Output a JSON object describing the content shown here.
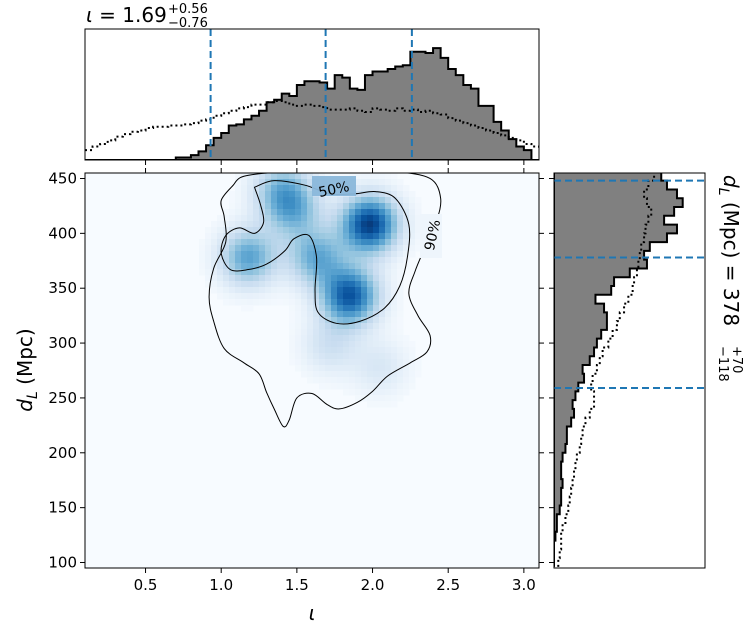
{
  "chart_data": {
    "type": "corner-plot",
    "top_panel": {
      "title_param": "ι",
      "title_median": "1.69",
      "title_plus": "+0.56",
      "title_minus": "−0.76",
      "quantile_lines": [
        0.93,
        1.69,
        2.26
      ],
      "bin_width": 0.05,
      "bins_start": 0.1,
      "histogram_filled": [
        0,
        0,
        0,
        0,
        0,
        0,
        0,
        0,
        0,
        0,
        0,
        0,
        0.02,
        0.02,
        0.04,
        0.07,
        0.12,
        0.18,
        0.22,
        0.28,
        0.29,
        0.33,
        0.36,
        0.4,
        0.47,
        0.49,
        0.54,
        0.52,
        0.61,
        0.64,
        0.64,
        0.63,
        0.58,
        0.69,
        0.67,
        0.58,
        0.57,
        0.69,
        0.72,
        0.72,
        0.74,
        0.76,
        0.77,
        0.88,
        0.88,
        0.87,
        0.91,
        0.83,
        0.74,
        0.69,
        0.61,
        0.58,
        0.44,
        0.44,
        0.31,
        0.24,
        0.17,
        0.11,
        0.08,
        0,
        0,
        0
      ],
      "histogram_dotted": [
        0.08,
        0.11,
        0.13,
        0.16,
        0.19,
        0.21,
        0.23,
        0.24,
        0.26,
        0.27,
        0.27,
        0.28,
        0.28,
        0.29,
        0.3,
        0.32,
        0.33,
        0.36,
        0.38,
        0.4,
        0.42,
        0.43,
        0.45,
        0.45,
        0.47,
        0.48,
        0.47,
        0.45,
        0.44,
        0.45,
        0.44,
        0.43,
        0.41,
        0.41,
        0.41,
        0.42,
        0.4,
        0.39,
        0.42,
        0.41,
        0.4,
        0.42,
        0.4,
        0.41,
        0.39,
        0.4,
        0.38,
        0.37,
        0.34,
        0.32,
        0.3,
        0.28,
        0.26,
        0.24,
        0.22,
        0.2,
        0.18,
        0.16,
        0.13,
        0.11,
        0.09,
        0.07
      ]
    },
    "joint_panel": {
      "xlabel": "ι",
      "ylabel_main": "d",
      "ylabel_sub": "L",
      "ylabel_unit": " (Mpc)",
      "xlim": [
        0.1,
        3.1
      ],
      "ylim": [
        95,
        455
      ],
      "xticks": [
        "0.5",
        "1.0",
        "1.5",
        "2.0",
        "2.5",
        "3.0"
      ],
      "yticks": [
        "100",
        "150",
        "200",
        "250",
        "300",
        "350",
        "400",
        "450"
      ],
      "contour_labels": [
        "50%",
        "90%"
      ],
      "density_peaks": [
        {
          "x": 1.98,
          "y": 408,
          "w": 0.95
        },
        {
          "x": 1.85,
          "y": 343,
          "w": 0.85
        },
        {
          "x": 1.18,
          "y": 378,
          "w": 0.55
        },
        {
          "x": 1.63,
          "y": 378,
          "w": 0.5
        },
        {
          "x": 1.48,
          "y": 420,
          "w": 0.4
        },
        {
          "x": 1.4,
          "y": 440,
          "w": 0.4
        },
        {
          "x": 1.72,
          "y": 298,
          "w": 0.2
        },
        {
          "x": 2.05,
          "y": 278,
          "w": 0.15
        }
      ],
      "contour_50": [
        [
          1.22,
          442
        ],
        [
          1.35,
          448
        ],
        [
          1.55,
          444
        ],
        [
          1.72,
          436
        ],
        [
          1.88,
          436
        ],
        [
          2.02,
          438
        ],
        [
          2.15,
          432
        ],
        [
          2.24,
          408
        ],
        [
          2.23,
          378
        ],
        [
          2.18,
          352
        ],
        [
          2.08,
          332
        ],
        [
          1.92,
          320
        ],
        [
          1.76,
          318
        ],
        [
          1.64,
          328
        ],
        [
          1.62,
          348
        ],
        [
          1.63,
          378
        ],
        [
          1.58,
          398
        ],
        [
          1.48,
          395
        ],
        [
          1.42,
          384
        ],
        [
          1.3,
          372
        ],
        [
          1.18,
          367
        ],
        [
          1.06,
          367
        ],
        [
          1.0,
          382
        ],
        [
          1.03,
          398
        ],
        [
          1.12,
          405
        ],
        [
          1.22,
          400
        ],
        [
          1.28,
          410
        ],
        [
          1.26,
          426
        ],
        [
          1.22,
          442
        ]
      ],
      "contour_90": [
        [
          1.08,
          444
        ],
        [
          1.15,
          452
        ],
        [
          1.4,
          456
        ],
        [
          1.6,
          456
        ],
        [
          1.9,
          455
        ],
        [
          2.15,
          456
        ],
        [
          2.38,
          450
        ],
        [
          2.45,
          432
        ],
        [
          2.42,
          410
        ],
        [
          2.34,
          385
        ],
        [
          2.28,
          365
        ],
        [
          2.24,
          345
        ],
        [
          2.3,
          325
        ],
        [
          2.38,
          307
        ],
        [
          2.36,
          292
        ],
        [
          2.25,
          282
        ],
        [
          2.1,
          270
        ],
        [
          2.0,
          256
        ],
        [
          1.9,
          246
        ],
        [
          1.78,
          240
        ],
        [
          1.7,
          244
        ],
        [
          1.6,
          254
        ],
        [
          1.5,
          250
        ],
        [
          1.45,
          230
        ],
        [
          1.41,
          224
        ],
        [
          1.35,
          240
        ],
        [
          1.3,
          255
        ],
        [
          1.25,
          272
        ],
        [
          1.15,
          282
        ],
        [
          1.02,
          295
        ],
        [
          0.95,
          320
        ],
        [
          0.92,
          342
        ],
        [
          0.95,
          368
        ],
        [
          1.03,
          392
        ],
        [
          1.02,
          415
        ],
        [
          1.0,
          430
        ],
        [
          1.08,
          444
        ]
      ]
    },
    "right_panel": {
      "label_main": "d",
      "label_sub": "L",
      "label_mid": " (Mpc) = 378",
      "label_plus": "+70",
      "label_minus": "−118",
      "quantile_lines": [
        259,
        378,
        448
      ],
      "bin_width": 8,
      "bins_start": 96,
      "histogram_filled": [
        0.0,
        0.0,
        0.0,
        0.01,
        0.02,
        0.02,
        0.04,
        0.05,
        0.05,
        0.06,
        0.05,
        0.05,
        0.06,
        0.08,
        0.09,
        0.09,
        0.12,
        0.14,
        0.13,
        0.15,
        0.17,
        0.21,
        0.2,
        0.25,
        0.28,
        0.3,
        0.33,
        0.37,
        0.37,
        0.35,
        0.29,
        0.4,
        0.42,
        0.53,
        0.65,
        0.63,
        0.67,
        0.79,
        0.86,
        0.77,
        0.84,
        0.9,
        0.86,
        0.79,
        0.75,
        0.94,
        0.96,
        0.83,
        0.71,
        0.77
      ],
      "histogram_dotted": [
        0.03,
        0.04,
        0.05,
        0.05,
        0.06,
        0.08,
        0.1,
        0.11,
        0.12,
        0.13,
        0.14,
        0.15,
        0.16,
        0.18,
        0.19,
        0.2,
        0.22,
        0.25,
        0.28,
        0.28,
        0.26,
        0.27,
        0.3,
        0.32,
        0.34,
        0.38,
        0.41,
        0.44,
        0.46,
        0.49,
        0.52,
        0.55,
        0.56,
        0.58,
        0.59,
        0.6,
        0.61,
        0.63,
        0.64,
        0.66,
        0.68,
        0.65,
        0.63,
        0.66,
        0.7,
        0.73,
        0.74,
        0.76,
        0.77,
        0.78
      ]
    },
    "colors": {
      "hist_fill": "#808080",
      "hist_edge": "#000000",
      "quantile": "#1f77b4",
      "density_low": "#f7fbff",
      "density_high": "#08306b"
    }
  }
}
